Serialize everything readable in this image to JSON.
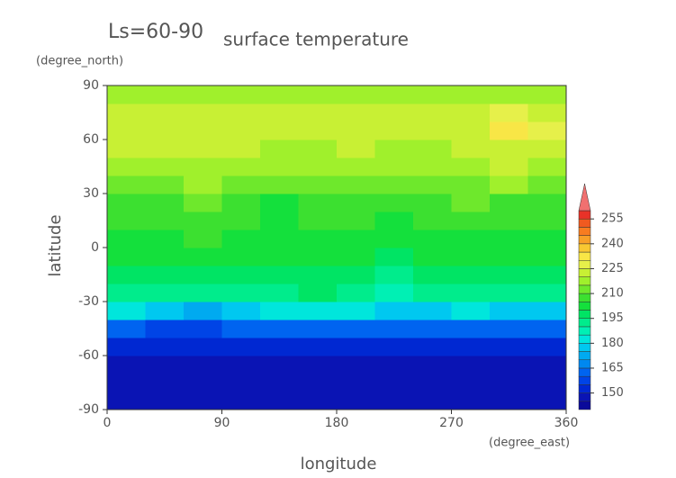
{
  "chart_data": {
    "type": "heatmap",
    "title": "surface temperature",
    "subtitle": "Ls=60-90",
    "x_label": "longitude",
    "x_unit": "(degree_east)",
    "y_label": "latitude",
    "y_unit": "(degree_north)",
    "x": [
      15,
      45,
      75,
      105,
      135,
      165,
      195,
      225,
      255,
      285,
      315,
      345
    ],
    "y": [
      -85,
      -75,
      -65,
      -55,
      -45,
      -35,
      -25,
      -15,
      -5,
      5,
      15,
      25,
      35,
      45,
      55,
      65,
      75,
      85
    ],
    "z": [
      [
        147,
        147,
        147,
        147,
        147,
        147,
        147,
        147,
        147,
        147,
        147,
        147
      ],
      [
        148,
        148,
        148,
        148,
        148,
        148,
        148,
        148,
        148,
        148,
        148,
        148
      ],
      [
        149,
        149,
        149,
        149,
        149,
        149,
        149,
        149,
        149,
        149,
        149,
        149
      ],
      [
        151,
        150,
        150,
        151,
        151,
        151,
        151,
        151,
        151,
        151,
        150,
        151
      ],
      [
        162,
        158,
        157,
        160,
        162,
        163,
        163,
        162,
        162,
        161,
        160,
        161
      ],
      [
        180,
        176,
        174,
        177,
        180,
        182,
        180,
        178,
        179,
        180,
        178,
        179
      ],
      [
        193,
        192,
        191,
        193,
        194,
        195,
        192,
        188,
        191,
        193,
        191,
        192
      ],
      [
        197,
        198,
        199,
        198,
        197,
        197,
        196,
        194,
        196,
        198,
        197,
        197
      ],
      [
        200,
        202,
        203,
        201,
        200,
        201,
        200,
        199,
        200,
        202,
        201,
        200
      ],
      [
        203,
        204,
        205,
        204,
        203,
        203,
        202,
        202,
        203,
        204,
        203,
        203
      ],
      [
        205,
        207,
        207,
        206,
        204,
        205,
        205,
        204,
        205,
        206,
        206,
        206
      ],
      [
        208,
        209,
        211,
        209,
        204,
        207,
        208,
        208,
        208,
        210,
        209,
        209
      ],
      [
        212,
        213,
        215,
        213,
        210,
        212,
        212,
        211,
        211,
        213,
        216,
        214
      ],
      [
        216,
        217,
        219,
        217,
        215,
        216,
        216,
        215,
        215,
        218,
        221,
        219
      ],
      [
        220,
        220,
        222,
        221,
        219,
        219,
        220,
        219,
        219,
        221,
        223,
        222
      ],
      [
        222,
        222,
        223,
        222,
        221,
        221,
        222,
        222,
        222,
        223,
        230,
        227
      ],
      [
        222,
        222,
        222,
        222,
        222,
        222,
        222,
        222,
        222,
        224,
        227,
        224
      ],
      [
        218,
        218,
        218,
        218,
        218,
        218,
        218,
        218,
        218,
        218,
        218,
        218
      ]
    ],
    "levels": [
      140,
      145,
      150,
      155,
      160,
      165,
      170,
      175,
      180,
      185,
      190,
      195,
      200,
      205,
      210,
      215,
      220,
      225,
      230,
      235,
      240,
      245,
      250,
      255,
      260
    ],
    "colors": [
      "#0a0a9a",
      "#0a14b4",
      "#0028d2",
      "#0044e6",
      "#0064f0",
      "#0088f0",
      "#00aaf0",
      "#00c8f0",
      "#00e6dc",
      "#00f0b4",
      "#00ec8c",
      "#00e464",
      "#14e03c",
      "#3ce030",
      "#6ee82c",
      "#a0f02c",
      "#c8f034",
      "#e6f04a",
      "#f8e646",
      "#f8c832",
      "#f8a028",
      "#f87c20",
      "#f05a20",
      "#e83228",
      "#f07070"
    ],
    "colorbar_ticks": [
      150,
      165,
      180,
      195,
      210,
      225,
      240,
      255
    ],
    "xlim": [
      0,
      360
    ],
    "xticks": [
      0,
      90,
      180,
      270,
      360
    ],
    "ylim": [
      -90,
      90
    ],
    "yticks": [
      -90,
      -60,
      -30,
      0,
      30,
      60,
      90
    ]
  }
}
